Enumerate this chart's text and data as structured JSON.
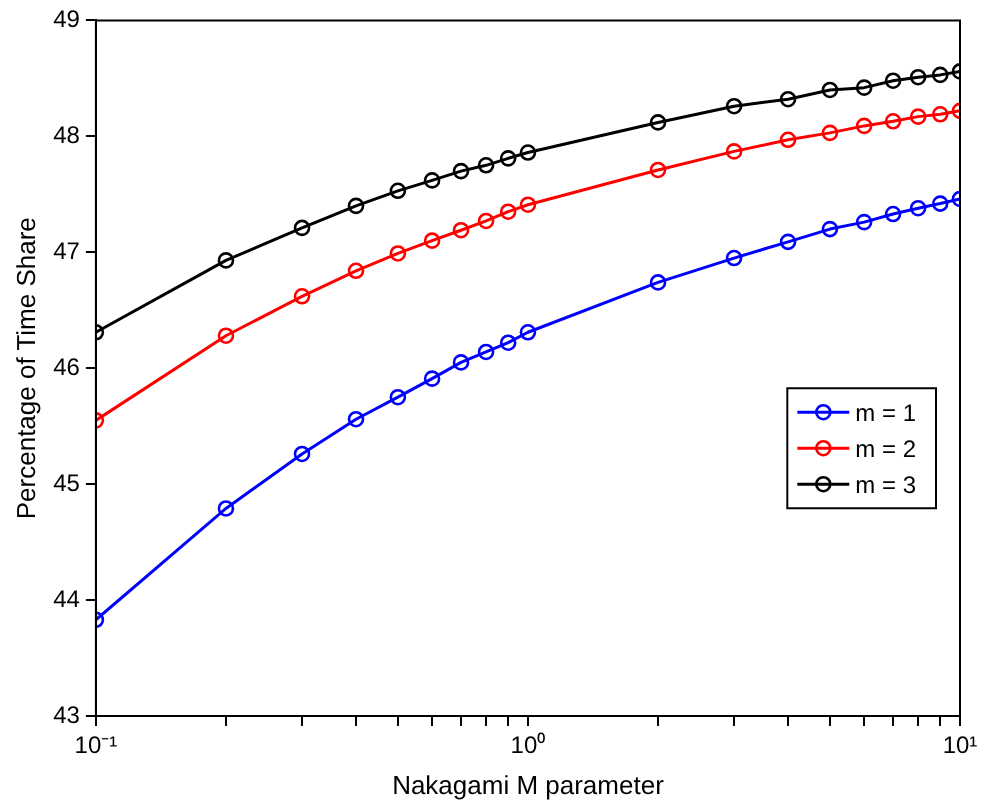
{
  "chart_data": {
    "type": "line",
    "xlabel": "Nakagami M parameter",
    "ylabel": "Percentage of Time Share",
    "x": [
      0.1,
      0.2,
      0.3,
      0.4,
      0.5,
      0.6,
      0.7,
      0.8,
      0.9,
      1,
      2,
      3,
      4,
      5,
      6,
      7,
      8,
      9,
      10
    ],
    "series": [
      {
        "name": "m = 1",
        "color": "#0000ff",
        "values": [
          43.83,
          44.79,
          45.26,
          45.56,
          45.75,
          45.91,
          46.05,
          46.14,
          46.22,
          46.31,
          46.74,
          46.95,
          47.09,
          47.2,
          47.26,
          47.33,
          47.38,
          47.42,
          47.46
        ]
      },
      {
        "name": "m = 2",
        "color": "#ff0000",
        "values": [
          45.55,
          46.28,
          46.62,
          46.84,
          46.99,
          47.1,
          47.19,
          47.27,
          47.35,
          47.41,
          47.71,
          47.87,
          47.97,
          48.03,
          48.09,
          48.13,
          48.17,
          48.19,
          48.22
        ]
      },
      {
        "name": "m = 3",
        "color": "#000000",
        "values": [
          46.31,
          46.93,
          47.21,
          47.4,
          47.53,
          47.62,
          47.7,
          47.75,
          47.81,
          47.86,
          48.12,
          48.26,
          48.32,
          48.4,
          48.42,
          48.48,
          48.51,
          48.53,
          48.56
        ]
      }
    ],
    "log": "x",
    "xlim": [
      0.1,
      10
    ],
    "xticks": [
      {
        "value": 0.1,
        "label": "10⁻¹"
      },
      {
        "value": 0.2,
        "label": null
      },
      {
        "value": 0.3,
        "label": null
      },
      {
        "value": 0.4,
        "label": null
      },
      {
        "value": 0.5,
        "label": null
      },
      {
        "value": 0.6,
        "label": null
      },
      {
        "value": 0.7,
        "label": null
      },
      {
        "value": 0.8,
        "label": null
      },
      {
        "value": 0.9,
        "label": null
      },
      {
        "value": 1,
        "label": "10⁰"
      },
      {
        "value": 2,
        "label": null
      },
      {
        "value": 3,
        "label": null
      },
      {
        "value": 4,
        "label": null
      },
      {
        "value": 5,
        "label": null
      },
      {
        "value": 6,
        "label": null
      },
      {
        "value": 7,
        "label": null
      },
      {
        "value": 8,
        "label": null
      },
      {
        "value": 9,
        "label": null
      },
      {
        "value": 10,
        "label": "10¹"
      }
    ],
    "ylim": [
      43,
      49
    ],
    "yticks": [
      43,
      44,
      45,
      46,
      47,
      48,
      49
    ],
    "grid": false,
    "legend": "right",
    "marker": "circle",
    "line_style": "solid"
  }
}
